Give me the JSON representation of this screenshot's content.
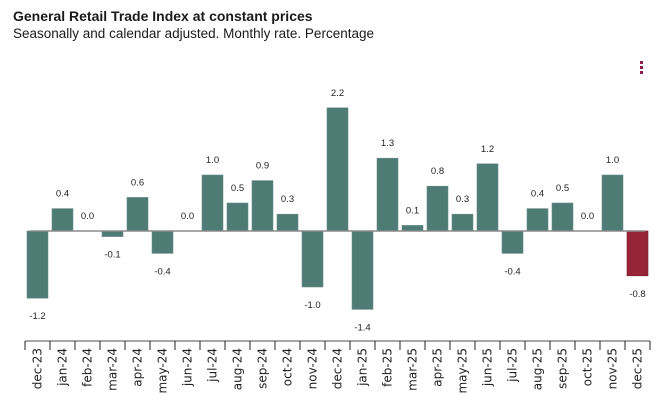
{
  "header": {
    "title": "General Retail Trade Index at constant prices",
    "subtitle": "Seasonally and calendar adjusted. Monthly rate. Percentage"
  },
  "menu": {
    "icon": "vertical-ellipsis-icon"
  },
  "colors": {
    "bar": "#4e7b74",
    "highlight": "#98243a",
    "axis": "#8a8a8a"
  },
  "chart_data": {
    "type": "bar",
    "title": "General Retail Trade Index at constant prices",
    "subtitle": "Seasonally and calendar adjusted. Monthly rate. Percentage",
    "xlabel": "",
    "ylabel": "",
    "categories": [
      "dec-23",
      "jan-24",
      "feb-24",
      "mar-24",
      "apr-24",
      "may-24",
      "jun-24",
      "jul-24",
      "aug-24",
      "sep-24",
      "oct-24",
      "nov-24",
      "dec-24",
      "jan-25",
      "feb-25",
      "mar-25",
      "apr-25",
      "may-25",
      "jun-25",
      "jul-25",
      "aug-25",
      "sep-25",
      "oct-25",
      "nov-25",
      "dec-25"
    ],
    "values": [
      -1.2,
      0.4,
      0.0,
      -0.1,
      0.6,
      -0.4,
      0.0,
      1.0,
      0.5,
      0.9,
      0.3,
      -1.0,
      2.2,
      -1.4,
      1.3,
      0.1,
      0.8,
      0.3,
      1.2,
      -0.4,
      0.4,
      0.5,
      0.0,
      1.0,
      -0.8
    ],
    "labels": [
      "-1.2",
      "0.4",
      "0.0",
      "-0.1",
      "0.6",
      "-0.4",
      "0.0",
      "1.0",
      "0.5",
      "0.9",
      "0.3",
      "-1.0",
      "2.2",
      "-1.4",
      "1.3",
      "0.1",
      "0.8",
      "0.3",
      "1.2",
      "-0.4",
      "0.4",
      "0.5",
      "0.0",
      "1.0",
      "-0.8"
    ],
    "highlighted_category": "dec-25",
    "ylim": [
      -1.6,
      2.4
    ],
    "grid": false,
    "legend": "none"
  }
}
